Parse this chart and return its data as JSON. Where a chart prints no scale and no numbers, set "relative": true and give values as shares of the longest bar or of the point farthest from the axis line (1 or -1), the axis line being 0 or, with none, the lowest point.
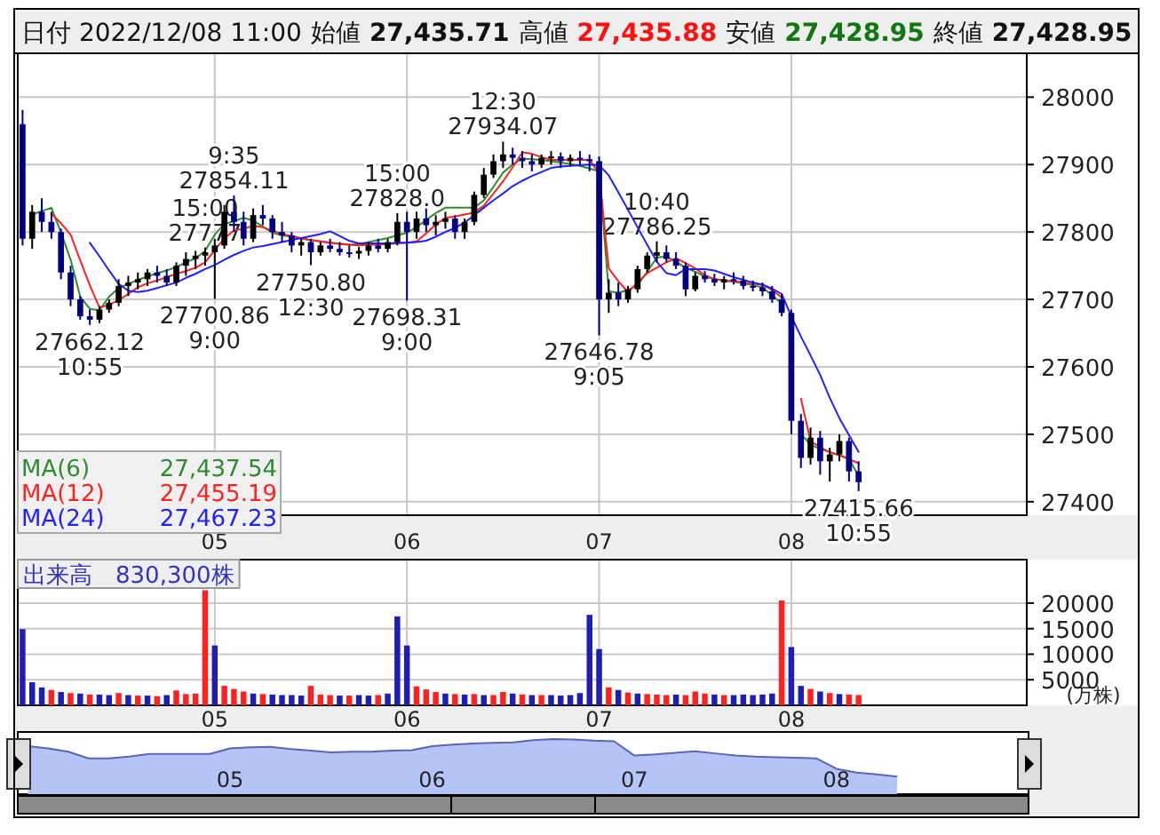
{
  "chart_data": [
    {
      "type": "candlestick",
      "categories": [
        null,
        null,
        null,
        null,
        null,
        null,
        null,
        null,
        null,
        null,
        null,
        null,
        null,
        null,
        null,
        null,
        null,
        null,
        null,
        null,
        "05",
        null,
        null,
        null,
        null,
        null,
        null,
        null,
        null,
        null,
        null,
        null,
        null,
        null,
        null,
        null,
        null,
        null,
        null,
        null,
        "06",
        null,
        null,
        null,
        null,
        null,
        null,
        null,
        null,
        null,
        null,
        null,
        null,
        null,
        null,
        null,
        null,
        null,
        null,
        null,
        "07",
        null,
        null,
        null,
        null,
        null,
        null,
        null,
        null,
        null,
        null,
        null,
        null,
        null,
        null,
        null,
        null,
        null,
        null,
        null,
        "08",
        null,
        null,
        null,
        null,
        null,
        null,
        null,
        null,
        null,
        null,
        null,
        null,
        null,
        null,
        null,
        null,
        null,
        null,
        null,
        null,
        null,
        null,
        null,
        null
      ],
      "ohlc": [
        [
          27960,
          27981,
          27780,
          27790
        ],
        [
          27790,
          27840,
          27775,
          27830
        ],
        [
          27830,
          27850,
          27800,
          27815
        ],
        [
          27815,
          27830,
          27790,
          27800
        ],
        [
          27800,
          27805,
          27730,
          27740
        ],
        [
          27740,
          27750,
          27690,
          27700
        ],
        [
          27700,
          27705,
          27670,
          27675
        ],
        [
          27675,
          27685,
          27662.12,
          27670
        ],
        [
          27670,
          27690,
          27665,
          27685
        ],
        [
          27685,
          27700,
          27680,
          27695
        ],
        [
          27695,
          27730,
          27690,
          27720
        ],
        [
          27720,
          27735,
          27705,
          27725
        ],
        [
          27725,
          27740,
          27715,
          27730
        ],
        [
          27730,
          27745,
          27720,
          27740
        ],
        [
          27740,
          27750,
          27725,
          27735
        ],
        [
          27735,
          27745,
          27720,
          27725
        ],
        [
          27725,
          27755,
          27720,
          27750
        ],
        [
          27750,
          27770,
          27735,
          27760
        ],
        [
          27760,
          27772,
          27745,
          27765
        ],
        [
          27765,
          27777,
          27750,
          27770
        ],
        [
          27770,
          27790,
          27700.86,
          27780
        ],
        [
          27780,
          27840,
          27775,
          27830
        ],
        [
          27830,
          27854.11,
          27800,
          27815
        ],
        [
          27815,
          27830,
          27780,
          27790
        ],
        [
          27790,
          27835,
          27785,
          27825
        ],
        [
          27825,
          27840,
          27810,
          27820
        ],
        [
          27820,
          27825,
          27790,
          27800
        ],
        [
          27800,
          27815,
          27785,
          27795
        ],
        [
          27795,
          27800,
          27770,
          27780
        ],
        [
          27780,
          27790,
          27765,
          27785
        ],
        [
          27785,
          27790,
          27750.8,
          27770
        ],
        [
          27770,
          27785,
          27765,
          27780
        ],
        [
          27780,
          27790,
          27770,
          27775
        ],
        [
          27775,
          27785,
          27765,
          27770
        ],
        [
          27770,
          27780,
          27762,
          27768
        ],
        [
          27768,
          27778,
          27760,
          27772
        ],
        [
          27772,
          27785,
          27765,
          27780
        ],
        [
          27780,
          27790,
          27770,
          27775
        ],
        [
          27775,
          27790,
          27770,
          27785
        ],
        [
          27785,
          27828,
          27780,
          27815
        ],
        [
          27815,
          27830,
          27698.31,
          27800
        ],
        [
          27800,
          27830,
          27790,
          27820
        ],
        [
          27820,
          27835,
          27800,
          27810
        ],
        [
          27810,
          27825,
          27795,
          27815
        ],
        [
          27815,
          27830,
          27805,
          27820
        ],
        [
          27820,
          27825,
          27790,
          27800
        ],
        [
          27800,
          27820,
          27790,
          27815
        ],
        [
          27815,
          27860,
          27810,
          27855
        ],
        [
          27855,
          27895,
          27850,
          27885
        ],
        [
          27885,
          27915,
          27880,
          27905
        ],
        [
          27905,
          27934.07,
          27895,
          27915
        ],
        [
          27915,
          27925,
          27900,
          27910
        ],
        [
          27910,
          27920,
          27895,
          27905
        ],
        [
          27905,
          27915,
          27890,
          27900
        ],
        [
          27900,
          27915,
          27895,
          27910
        ],
        [
          27910,
          27920,
          27900,
          27912
        ],
        [
          27912,
          27918,
          27895,
          27905
        ],
        [
          27905,
          27915,
          27898,
          27910
        ],
        [
          27910,
          27920,
          27900,
          27908
        ],
        [
          27908,
          27915,
          27890,
          27905
        ],
        [
          27905,
          27912,
          27646.78,
          27700
        ],
        [
          27700,
          27730,
          27680,
          27710
        ],
        [
          27710,
          27725,
          27690,
          27700
        ],
        [
          27700,
          27720,
          27695,
          27715
        ],
        [
          27715,
          27750,
          27710,
          27745
        ],
        [
          27745,
          27770,
          27740,
          27765
        ],
        [
          27765,
          27786.25,
          27755,
          27770
        ],
        [
          27770,
          27780,
          27755,
          27760
        ],
        [
          27760,
          27770,
          27745,
          27750
        ],
        [
          27750,
          27755,
          27705,
          27715
        ],
        [
          27715,
          27740,
          27712,
          27735
        ],
        [
          27735,
          27742,
          27725,
          27730
        ],
        [
          27730,
          27738,
          27720,
          27725
        ],
        [
          27725,
          27735,
          27715,
          27730
        ],
        [
          27730,
          27740,
          27722,
          27728
        ],
        [
          27728,
          27735,
          27715,
          27720
        ],
        [
          27720,
          27728,
          27712,
          27718
        ],
        [
          27718,
          27725,
          27705,
          27712
        ],
        [
          27712,
          27720,
          27695,
          27700
        ],
        [
          27700,
          27708,
          27675,
          27680
        ],
        [
          27680,
          27685,
          27500,
          27520
        ],
        [
          27520,
          27530,
          27450,
          27465
        ],
        [
          27465,
          27510,
          27455,
          27495
        ],
        [
          27495,
          27505,
          27440,
          27460
        ],
        [
          27460,
          27480,
          27430,
          27470
        ],
        [
          27470,
          27500,
          27460,
          27490
        ],
        [
          27490,
          27495,
          27430,
          27445
        ],
        [
          27445,
          27460,
          27415.66,
          27428.95
        ],
        null,
        null,
        null,
        null,
        null,
        null,
        null,
        null,
        null,
        null,
        null,
        null,
        null,
        null,
        null,
        null,
        null
      ],
      "colors": [
        "#000080",
        "#000000",
        "#000080",
        "#000080",
        "#000080",
        "#000080",
        "#000080",
        "#000080",
        "#000000",
        "#000000",
        "#000000",
        "#000000",
        "#000000",
        "#000000",
        "#000080",
        "#000080",
        "#000000",
        "#000000",
        "#000000",
        "#000000",
        "#000000",
        "#000000",
        "#000080",
        "#000080",
        "#000000",
        "#000080",
        "#000080",
        "#000080",
        "#000080",
        "#000000",
        "#000080",
        "#000000",
        "#000080",
        "#000080",
        "#000080",
        "#000000",
        "#000000",
        "#000080",
        "#000000",
        "#000000",
        "#000080",
        "#000000",
        "#000080",
        "#000000",
        "#000000",
        "#000080",
        "#000000",
        "#000000",
        "#000000",
        "#000000",
        "#000000",
        "#000080",
        "#000080",
        "#000080",
        "#000000",
        "#000000",
        "#000080",
        "#000000",
        "#000080",
        "#000080",
        "#000080",
        "#000000",
        "#000080",
        "#000000",
        "#000000",
        "#000000",
        "#000000",
        "#000080",
        "#000080",
        "#000080",
        "#000000",
        "#000080",
        "#000080",
        "#000000",
        "#000080",
        "#000080",
        "#000080",
        "#000080",
        "#000080",
        "#000080",
        "#000080",
        "#000080",
        "#000000",
        "#000080",
        "#000000",
        "#000000",
        "#000080",
        "#000080",
        null,
        null,
        null,
        null,
        null,
        null,
        null,
        null,
        null,
        null,
        null,
        null,
        null,
        null,
        null,
        null,
        null
      ],
      "series": [
        {
          "name": "MA(6)",
          "type": "line",
          "color": "#2e8b2e",
          "values": [
            null,
            27826,
            27831,
            27836,
            27799,
            27759,
            27704,
            27686,
            27684,
            27704,
            27717,
            27723,
            27729,
            27734,
            27739,
            27743,
            27748,
            27755,
            27761,
            27772,
            27796,
            27812,
            27816,
            27821,
            27817,
            27808,
            27799,
            27795,
            27793,
            27790,
            27788,
            27786,
            27784,
            27783,
            27781,
            27782,
            27785,
            27788,
            27791,
            27795,
            27799,
            27807,
            27818,
            27828,
            27836,
            27836,
            27836,
            27836,
            27847,
            27867,
            27888,
            27900,
            27909,
            27908,
            27907,
            27905,
            27903,
            27901,
            27898,
            27894,
            27890,
            27712,
            27710,
            27714,
            27721,
            27741,
            27762,
            27764,
            27756,
            27747,
            27741,
            27734,
            27730,
            27728,
            27726,
            27724,
            27721,
            27718,
            27706,
            27694,
            null,
            27500,
            27485,
            27478,
            27474,
            27469,
            27464,
            27438,
            null,
            null,
            null,
            null,
            null,
            null,
            null,
            null,
            null,
            null,
            null,
            null,
            null,
            null,
            null,
            null,
            null
          ]
        },
        {
          "name": "MA(12)",
          "type": "line",
          "color": "#ff2020",
          "values": [
            null,
            null,
            null,
            27827,
            27813,
            27796,
            27758,
            27721,
            27688,
            27692,
            27699,
            27708,
            27718,
            27724,
            27728,
            27733,
            27738,
            27742,
            27747,
            27755,
            27773,
            27791,
            27802,
            27805,
            27809,
            27807,
            27802,
            27797,
            27794,
            27791,
            27788,
            27786,
            27784,
            27782,
            27781,
            27780,
            27781,
            27781,
            27782,
            27783,
            27784,
            27786,
            27798,
            27811,
            27821,
            27823,
            27826,
            27829,
            27839,
            27857,
            27875,
            27896,
            27918,
            27916,
            27911,
            27907,
            27907,
            27907,
            27907,
            27907,
            27887,
            27746,
            27727,
            27711,
            27725,
            27739,
            27747,
            27755,
            27761,
            27754,
            27746,
            27736,
            27730,
            27728,
            27727,
            27725,
            27723,
            27722,
            27714,
            27703,
            null,
            27553,
            27490,
            27481,
            27473,
            27469,
            27463,
            27457,
            null,
            null,
            null,
            null,
            null,
            null,
            null,
            null,
            null,
            null,
            null,
            null,
            null,
            null,
            null,
            null,
            null
          ]
        },
        {
          "name": "MA(24)",
          "type": "line",
          "color": "#2020ff",
          "values": [
            null,
            null,
            null,
            null,
            null,
            null,
            null,
            27784,
            27764,
            27743,
            27723,
            27713,
            27711,
            27713,
            27717,
            27721,
            27725,
            27732,
            27738,
            27745,
            27751,
            27759,
            27766,
            27772,
            27777,
            27779,
            27782,
            27785,
            27788,
            27791,
            27794,
            27797,
            27801,
            27794,
            27787,
            27783,
            27783,
            27783,
            27783,
            27784,
            27784,
            27785,
            27787,
            27793,
            27800,
            27806,
            27814,
            27825,
            27836,
            27847,
            27857,
            27868,
            27876,
            27883,
            27889,
            27895,
            27897,
            27898,
            27899,
            27900,
            27899,
            27884,
            27859,
            27833,
            27807,
            27781,
            27756,
            27739,
            27736,
            27745,
            27745,
            27745,
            27743,
            27738,
            27733,
            27729,
            27725,
            27722,
            27716,
            27708,
            27675,
            27645,
            27617,
            27588,
            27554,
            27524,
            27499,
            27474,
            null,
            null,
            null,
            null,
            null,
            null,
            null,
            null,
            null,
            null,
            null,
            null,
            null,
            null,
            null,
            null,
            null
          ]
        }
      ],
      "ylim": [
        27380,
        28065
      ],
      "yticks": [
        27400,
        27500,
        27600,
        27700,
        27800,
        27900,
        28000
      ],
      "grid": true,
      "legend": "bottom left",
      "annotations": [
        "日付 2022/12/08 11:00",
        "始値",
        "27,435.71",
        "高値",
        "27,435.88",
        "安値",
        "27,428.95",
        "終値",
        "27,428.95",
        "27,437.54",
        "27,455.19",
        "27,467.23",
        {
          "text": "27662.12\n10:55",
          "y": 27662.12
        },
        {
          "text": "15:00\n27777",
          "y": 27777
        },
        {
          "text": "27700.86\n9:00",
          "y": 27700.86
        },
        {
          "text": "9:35\n27854.11",
          "y": 27854.11
        },
        {
          "text": "27750.80\n12:30",
          "y": 27750.8
        },
        {
          "text": "15:00\n27828.0",
          "y": 27828
        },
        {
          "text": "27698.31\n9:00",
          "y": 27698.31
        },
        {
          "text": "12:30\n27934.07",
          "y": 27934.07
        },
        {
          "text": "27646.78\n9:05",
          "y": 27646.78
        },
        {
          "text": "10:40\n27786.25",
          "y": 27786.25
        },
        {
          "text": "27415.66\n10:55",
          "y": 27415.66
        }
      ]
    },
    {
      "type": "bar",
      "categories": [
        null,
        null,
        null,
        null,
        null,
        null,
        null,
        null,
        null,
        null,
        null,
        null,
        null,
        null,
        null,
        null,
        null,
        null,
        null,
        null,
        "05",
        null,
        null,
        null,
        null,
        null,
        null,
        null,
        null,
        null,
        null,
        null,
        null,
        null,
        null,
        null,
        null,
        null,
        null,
        null,
        "06",
        null,
        null,
        null,
        null,
        null,
        null,
        null,
        null,
        null,
        null,
        null,
        null,
        null,
        null,
        null,
        null,
        null,
        null,
        null,
        "07",
        null,
        null,
        null,
        null,
        null,
        null,
        null,
        null,
        null,
        null,
        null,
        null,
        null,
        null,
        null,
        null,
        null,
        null,
        null,
        "08",
        null,
        null,
        null,
        null,
        null,
        null,
        null,
        null,
        null,
        null,
        null,
        null,
        null,
        null,
        null,
        null,
        null,
        null,
        null,
        null,
        null,
        null,
        null,
        null
      ],
      "values": [
        14900,
        4500,
        3500,
        3000,
        2600,
        2400,
        2300,
        2100,
        2100,
        2000,
        2400,
        2000,
        1900,
        1900,
        1800,
        2000,
        2900,
        2200,
        2300,
        22500,
        11700,
        3800,
        3200,
        2700,
        2300,
        2200,
        2100,
        2000,
        2000,
        1900,
        3800,
        2100,
        2000,
        1900,
        1900,
        2000,
        1900,
        2000,
        2300,
        17400,
        11700,
        3700,
        3100,
        2600,
        2300,
        2200,
        2100,
        2200,
        2000,
        2000,
        2600,
        2300,
        2100,
        2000,
        2000,
        2000,
        1900,
        2000,
        2400,
        17700,
        11000,
        3500,
        3000,
        2500,
        2300,
        2200,
        2100,
        2000,
        2100,
        2000,
        2700,
        2300,
        2100,
        2000,
        2000,
        2100,
        2000,
        2100,
        2300,
        20500,
        11400,
        3800,
        3200,
        2700,
        2400,
        2200,
        2100,
        2000,
        null,
        null,
        null,
        null,
        null,
        null,
        null,
        null,
        null,
        null,
        null,
        null,
        null,
        null,
        null,
        null,
        null
      ],
      "colors": [
        "#1e1eb4",
        "#1e1eb4",
        "#1e1eb4",
        "#ff2020",
        "#1e1eb4",
        "#ff2020",
        "#1e1eb4",
        "#ff2020",
        "#1e1eb4",
        "#1e1eb4",
        "#ff2020",
        "#1e1eb4",
        "#ff2020",
        "#1e1eb4",
        "#ff2020",
        "#1e1eb4",
        "#ff2020",
        "#ff2020",
        "#ff2020",
        "#ff2020",
        "#1e1eb4",
        "#ff2020",
        "#ff2020",
        "#ff2020",
        "#1e1eb4",
        "#ff2020",
        "#1e1eb4",
        "#1e1eb4",
        "#1e1eb4",
        "#1e1eb4",
        "#ff2020",
        "#ff2020",
        "#ff2020",
        "#1e1eb4",
        "#ff2020",
        "#1e1eb4",
        "#1e1eb4",
        "#ff2020",
        "#1e1eb4",
        "#1e1eb4",
        "#1e1eb4",
        "#ff2020",
        "#ff2020",
        "#ff2020",
        "#1e1eb4",
        "#ff2020",
        "#1e1eb4",
        "#ff2020",
        "#1e1eb4",
        "#ff2020",
        "#ff2020",
        "#1e1eb4",
        "#ff2020",
        "#1e1eb4",
        "#ff2020",
        "#1e1eb4",
        "#1e1eb4",
        "#1e1eb4",
        "#1e1eb4",
        "#1e1eb4",
        "#1e1eb4",
        "#ff2020",
        "#1e1eb4",
        "#ff2020",
        "#1e1eb4",
        "#ff2020",
        "#ff2020",
        "#ff2020",
        "#1e1eb4",
        "#ff2020",
        "#ff2020",
        "#ff2020",
        "#1e1eb4",
        "#ff2020",
        "#1e1eb4",
        "#1e1eb4",
        "#1e1eb4",
        "#1e1eb4",
        "#1e1eb4",
        "#ff2020",
        "#1e1eb4",
        "#1e1eb4",
        "#ff2020",
        "#1e1eb4",
        "#ff2020",
        "#1e1eb4",
        "#ff2020",
        "#ff2020",
        null,
        null,
        null,
        null,
        null,
        null,
        null,
        null,
        null,
        null,
        null,
        null,
        null,
        null,
        null,
        null,
        null
      ],
      "ylim": [
        0,
        28500
      ],
      "yticks": [
        5000,
        10000,
        15000,
        20000
      ],
      "ylabel": "(万株)",
      "grid": true,
      "annotations": [
        "出来高　830,300株"
      ]
    },
    {
      "type": "area",
      "relative": true,
      "color": "#b4c4f6",
      "categories": [
        null,
        null,
        null,
        null,
        null,
        null,
        null,
        null,
        null,
        null,
        "05",
        null,
        null,
        null,
        null,
        null,
        null,
        null,
        null,
        null,
        "06",
        null,
        null,
        null,
        null,
        null,
        null,
        null,
        null,
        null,
        "07",
        null,
        null,
        null,
        null,
        null,
        null,
        null,
        null,
        null,
        "08",
        null,
        null,
        null,
        null,
        null,
        null,
        null,
        null,
        null
      ],
      "values": [
        0.87,
        0.83,
        0.77,
        0.65,
        0.65,
        0.68,
        0.73,
        0.73,
        0.73,
        0.73,
        0.83,
        0.85,
        0.86,
        0.82,
        0.79,
        0.76,
        0.77,
        0.77,
        0.79,
        0.8,
        0.87,
        0.9,
        0.92,
        0.93,
        0.94,
        0.98,
        1,
        0.99,
        0.97,
        0.96,
        0.7,
        0.72,
        0.75,
        0.78,
        0.74,
        0.7,
        0.68,
        0.67,
        0.66,
        0.65,
        0.46,
        0.39,
        0.36,
        0.32,
        null,
        null,
        null,
        null,
        null,
        null
      ]
    }
  ]
}
